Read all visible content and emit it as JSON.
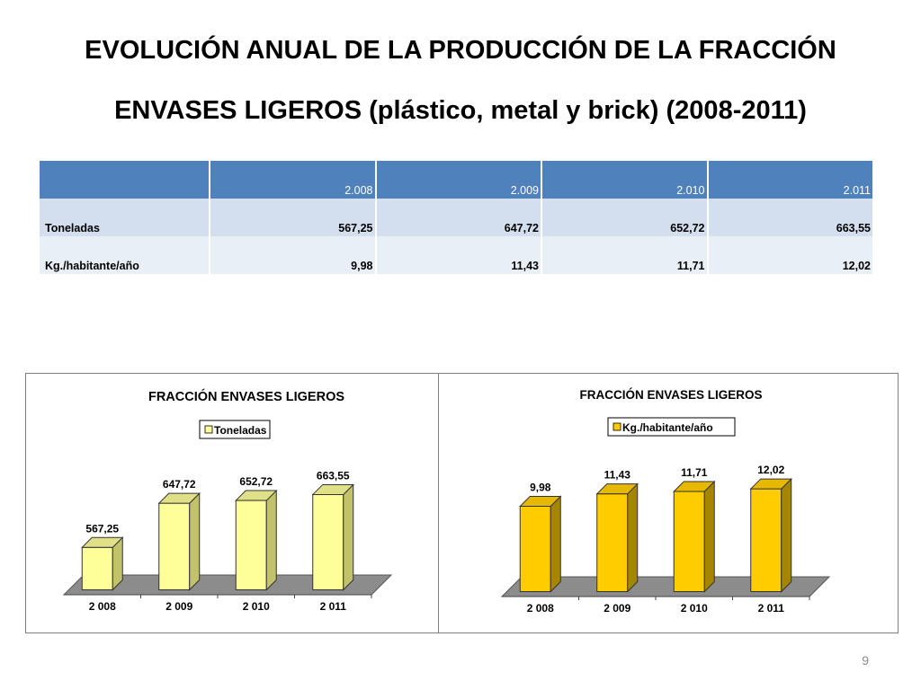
{
  "slide": {
    "title_line1": "EVOLUCIÓN ANUAL DE LA PRODUCCIÓN DE LA FRACCIÓN",
    "title_line2": "ENVASES LIGEROS (plástico, metal y brick) (2008-2011)",
    "page_number": "9"
  },
  "table": {
    "headers": [
      "",
      "2.008",
      "2.009",
      "2.010",
      "2.011"
    ],
    "rows": [
      {
        "label": "Toneladas",
        "values": [
          "567,25",
          "647,72",
          "652,72",
          "663,55"
        ]
      },
      {
        "label": "Kg./habitante/año",
        "values": [
          "9,98",
          "11,43",
          "11,71",
          "12,02"
        ]
      }
    ],
    "colors": {
      "header_bg": "#4f81bd",
      "row1_bg": "#d3dfee",
      "row2_bg": "#e9eff7"
    }
  },
  "chart_data": [
    {
      "type": "bar",
      "title": "FRACCIÓN ENVASES LIGEROS",
      "categories": [
        "2 008",
        "2 009",
        "2 010",
        "2 011"
      ],
      "series": [
        {
          "name": "Toneladas",
          "values": [
            567.25,
            647.72,
            652.72,
            663.55
          ],
          "labels": [
            "567,25",
            "647,72",
            "652,72",
            "663,55"
          ]
        }
      ],
      "ylim": [
        490,
        670
      ],
      "legend": "top",
      "grid": false,
      "colors": {
        "front": "#ffff99",
        "side": "#c2c26b",
        "top": "#e0e088",
        "floor": "#8c8c8c"
      }
    },
    {
      "type": "bar",
      "title": "FRACCIÓN ENVASES LIGEROS",
      "categories": [
        "2 008",
        "2 009",
        "2 010",
        "2 011"
      ],
      "series": [
        {
          "name": "Kg./habitante/año",
          "values": [
            9.98,
            11.43,
            11.71,
            12.02
          ],
          "labels": [
            "9,98",
            "11,43",
            "11,71",
            "12,02"
          ]
        }
      ],
      "ylim": [
        0,
        12.5
      ],
      "legend": "top",
      "grid": false,
      "colors": {
        "front": "#ffcc00",
        "side": "#a68500",
        "top": "#e6b800",
        "floor": "#8c8c8c"
      }
    }
  ]
}
